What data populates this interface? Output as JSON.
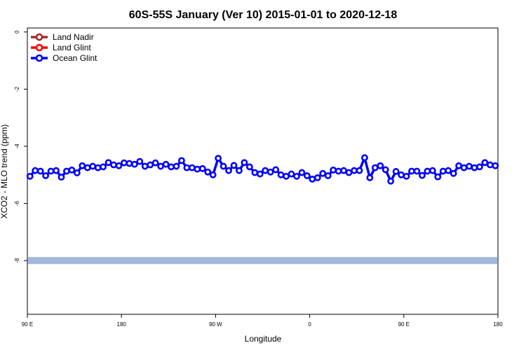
{
  "chart_data": {
    "type": "line",
    "title": "60S-55S January (Ver 10)   2015-01-01 to 2020-12-18",
    "xlabel": "Longitude",
    "ylabel": "XCO2 - MLO trend (ppm)",
    "xlim": [
      -90,
      360
    ],
    "ylim": [
      -10,
      0
    ],
    "x_ticks": [
      {
        "value": -90,
        "label": "90 E"
      },
      {
        "value": 0,
        "label": "180"
      },
      {
        "value": 90,
        "label": "90 W"
      },
      {
        "value": 180,
        "label": "0"
      },
      {
        "value": 270,
        "label": "90 E"
      },
      {
        "value": 360,
        "label": "180"
      }
    ],
    "y_ticks": [
      0,
      -2,
      -4,
      -6,
      -8
    ],
    "grid": false,
    "legend_position": "top-left",
    "legend": [
      {
        "name": "Land Nadir",
        "color": "#a52a2a"
      },
      {
        "name": "Land Glint",
        "color": "#ff0000"
      },
      {
        "name": "Ocean Glint",
        "color": "#0000ff"
      }
    ],
    "band": {
      "y_center": -8.0,
      "color": "#a3b8dc"
    },
    "series": [
      {
        "name": "Ocean Glint",
        "color": "#0000ff",
        "x": [
          -87.5,
          -82.5,
          -77.5,
          -72.5,
          -67.5,
          -62.5,
          -57.5,
          -52.5,
          -47.5,
          -42.5,
          -37.5,
          -32.5,
          -27.5,
          -22.5,
          -17.5,
          -12.5,
          -7.5,
          -2.5,
          2.5,
          7.5,
          12.5,
          17.5,
          22.5,
          27.5,
          32.5,
          37.5,
          42.5,
          47.5,
          52.5,
          57.5,
          62.5,
          67.5,
          72.5,
          77.5,
          82.5,
          87.5,
          92.5,
          97.5,
          102.5,
          107.5,
          112.5,
          117.5,
          122.5,
          127.5,
          132.5,
          137.5,
          142.5,
          147.5,
          152.5,
          157.5,
          162.5,
          167.5,
          172.5,
          177.5,
          182.5,
          187.5,
          192.5,
          197.5,
          202.5,
          207.5,
          212.5,
          217.5,
          222.5,
          227.5,
          232.5,
          237.5,
          242.5,
          247.5,
          252.5,
          257.5,
          262.5,
          267.5,
          272.5,
          277.5,
          282.5,
          287.5,
          292.5,
          297.5,
          302.5,
          307.5,
          312.5,
          317.5,
          322.5,
          327.5,
          332.5,
          337.5,
          342.5,
          347.5,
          352.5,
          357.5
        ],
        "y": [
          -5.05,
          -4.85,
          -4.87,
          -5.03,
          -4.87,
          -4.85,
          -5.08,
          -4.87,
          -4.83,
          -4.93,
          -4.68,
          -4.75,
          -4.7,
          -4.75,
          -4.72,
          -4.57,
          -4.65,
          -4.68,
          -4.58,
          -4.6,
          -4.63,
          -4.53,
          -4.7,
          -4.65,
          -4.58,
          -4.7,
          -4.63,
          -4.72,
          -4.7,
          -4.5,
          -4.75,
          -4.75,
          -4.8,
          -4.78,
          -4.9,
          -5.0,
          -4.42,
          -4.7,
          -4.85,
          -4.67,
          -4.85,
          -4.57,
          -4.72,
          -4.92,
          -4.97,
          -4.85,
          -4.9,
          -4.82,
          -5.0,
          -5.05,
          -4.97,
          -5.05,
          -4.92,
          -5.03,
          -5.15,
          -5.1,
          -4.95,
          -5.03,
          -4.83,
          -4.87,
          -4.85,
          -4.92,
          -4.85,
          -4.85,
          -4.4,
          -5.1,
          -4.75,
          -4.68,
          -4.82,
          -5.22,
          -4.88,
          -5.0,
          -5.05,
          -4.87,
          -4.87,
          -5.02,
          -4.87,
          -4.85,
          -5.07,
          -4.87,
          -4.85,
          -4.95,
          -4.68,
          -4.75,
          -4.7,
          -4.75,
          -4.72,
          -4.57,
          -4.65,
          -4.68
        ]
      }
    ]
  }
}
